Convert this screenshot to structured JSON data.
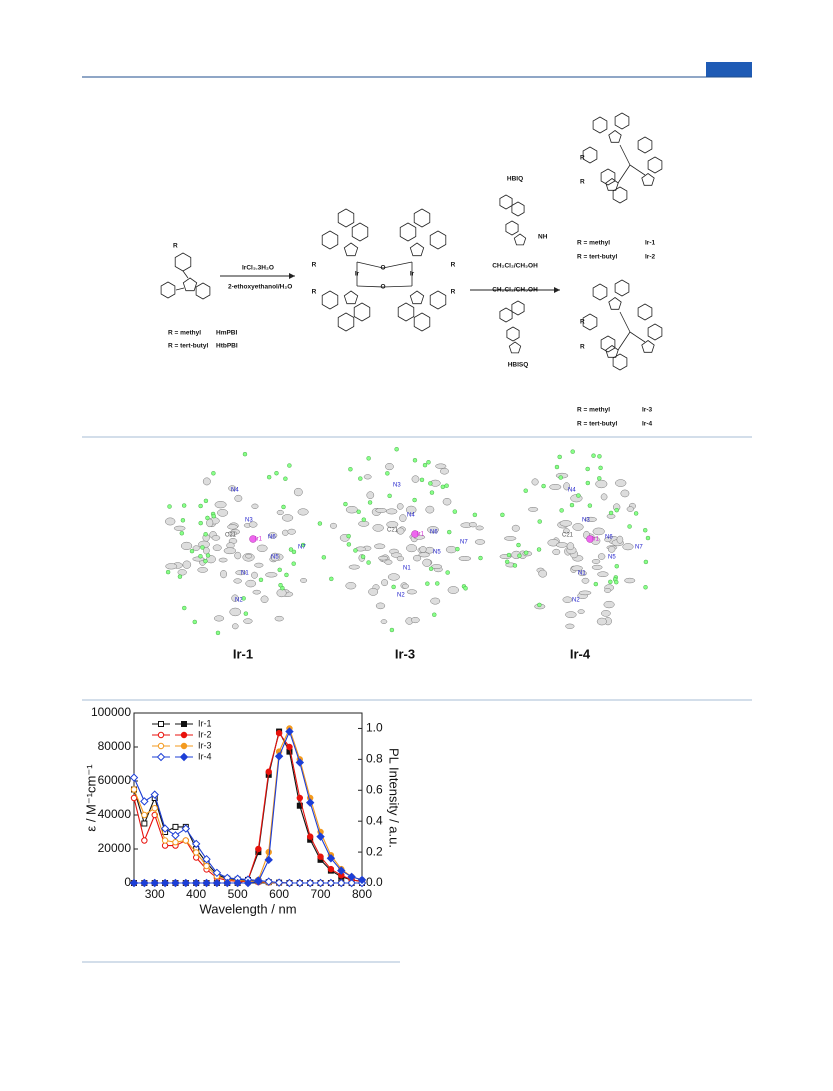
{
  "scheme": {
    "ligand_r": "R",
    "ligand_rows": [
      {
        "r": "R = methyl",
        "name": "HmPBI"
      },
      {
        "r": "R = tert-butyl",
        "name": "HtbPBI"
      }
    ],
    "step1_reagent": "IrCl₃.3H₂O",
    "step1_solvent": "2-ethoxyethanol/H₂O",
    "dimer_labels": [
      "R",
      "R",
      "R",
      "R",
      "Ir",
      "Ir",
      "O",
      "O"
    ],
    "ligand_top": "HBIQ",
    "nh": "NH",
    "solvent_top": "CH₂Cl₂/CH₃OH",
    "solvent_bottom": "CH₂Cl₂/CH₃OH",
    "ligand_bottom": "HBISQ",
    "product_r": [
      "R",
      "R",
      "R",
      "R"
    ],
    "products_top": [
      {
        "r": "R = methyl",
        "name": "Ir-1"
      },
      {
        "r": "R = tert-butyl",
        "name": "Ir-2"
      }
    ],
    "products_bottom": [
      {
        "r": "R = methyl",
        "name": "Ir-3"
      },
      {
        "r": "R = tert-butyl",
        "name": "Ir-4"
      }
    ]
  },
  "crystals": [
    {
      "name": "Ir-1",
      "atoms": [
        "N4",
        "N3",
        "N6",
        "Ir1",
        "C21",
        "N7",
        "N5",
        "N1",
        "N2"
      ]
    },
    {
      "name": "Ir-3",
      "atoms": [
        "N3",
        "N4",
        "N6",
        "Ir1",
        "C21",
        "N7",
        "N5",
        "N1",
        "N2"
      ]
    },
    {
      "name": "Ir-4",
      "atoms": [
        "N4",
        "N3",
        "N6",
        "Ir1",
        "C21",
        "N7",
        "N5",
        "N1",
        "N2"
      ]
    }
  ],
  "chart_data": {
    "type": "line",
    "xlabel": "Wavelength / nm",
    "ylabel": "ε / M⁻¹cm⁻¹",
    "y2label": "PL Intensity / a.u.",
    "x": [
      250,
      275,
      300,
      325,
      350,
      375,
      400,
      425,
      450,
      475,
      500,
      525,
      550,
      575,
      600,
      625,
      650,
      675,
      700,
      725,
      750,
      775,
      800
    ],
    "xlim": [
      250,
      800
    ],
    "xticks": [
      300,
      400,
      500,
      600,
      700,
      800
    ],
    "ylim": [
      0,
      100000
    ],
    "yticks": [
      0,
      20000,
      40000,
      60000,
      80000,
      100000
    ],
    "y2lim": [
      0,
      1.1
    ],
    "y2ticks": [
      {
        "value": 0,
        "label": "0.0"
      },
      {
        "value": 0.2,
        "label": "0.2"
      },
      {
        "value": 0.4,
        "label": "0.4"
      },
      {
        "value": 0.6,
        "label": "0.6"
      },
      {
        "value": 0.8,
        "label": "0.8"
      },
      {
        "value": 1,
        "label": "1.0"
      }
    ],
    "series": [
      {
        "name": "Ir-1",
        "color": "#111111",
        "values": [
          55000,
          35000,
          50000,
          30000,
          33000,
          33000,
          20000,
          12000,
          5000,
          2500,
          2000,
          1500,
          1000,
          500,
          200,
          0,
          0,
          0,
          0,
          0,
          0,
          0,
          0
        ],
        "pl_values": [
          0,
          0,
          0,
          0,
          0,
          0,
          0,
          0,
          0,
          0,
          0,
          0.02,
          0.2,
          0.7,
          0.98,
          0.85,
          0.5,
          0.28,
          0.15,
          0.08,
          0.04,
          0.02,
          0.01
        ]
      },
      {
        "name": "Ir-2",
        "color": "#e8120c",
        "values": [
          50000,
          25000,
          40000,
          22000,
          22000,
          25000,
          15000,
          8000,
          3000,
          1500,
          1000,
          800,
          500,
          300,
          100,
          0,
          0,
          0,
          0,
          0,
          0,
          0,
          0
        ],
        "pl_values": [
          0,
          0,
          0,
          0,
          0,
          0,
          0,
          0,
          0,
          0,
          0,
          0.02,
          0.22,
          0.72,
          0.97,
          0.88,
          0.55,
          0.3,
          0.17,
          0.09,
          0.05,
          0.02,
          0.01
        ]
      },
      {
        "name": "Ir-3",
        "color": "#f39a1e",
        "values": [
          55000,
          40000,
          44000,
          25000,
          24000,
          25000,
          18000,
          10000,
          4000,
          2000,
          1500,
          1200,
          800,
          400,
          100,
          0,
          0,
          0,
          0,
          0,
          0,
          0,
          0
        ],
        "pl_values": [
          0,
          0,
          0,
          0,
          0,
          0,
          0,
          0,
          0,
          0,
          0,
          0,
          0.02,
          0.2,
          0.85,
          1,
          0.8,
          0.55,
          0.33,
          0.18,
          0.09,
          0.04,
          0.02
        ]
      },
      {
        "name": "Ir-4",
        "color": "#1d3fd6",
        "values": [
          62000,
          48000,
          52000,
          32000,
          28000,
          32000,
          23000,
          14000,
          6000,
          3000,
          2500,
          2000,
          1500,
          800,
          200,
          0,
          0,
          0,
          0,
          0,
          0,
          0,
          0
        ],
        "pl_values": [
          0,
          0,
          0,
          0,
          0,
          0,
          0,
          0,
          0,
          0,
          0,
          0,
          0.01,
          0.15,
          0.82,
          0.98,
          0.78,
          0.52,
          0.3,
          0.16,
          0.08,
          0.04,
          0.02
        ]
      }
    ]
  }
}
